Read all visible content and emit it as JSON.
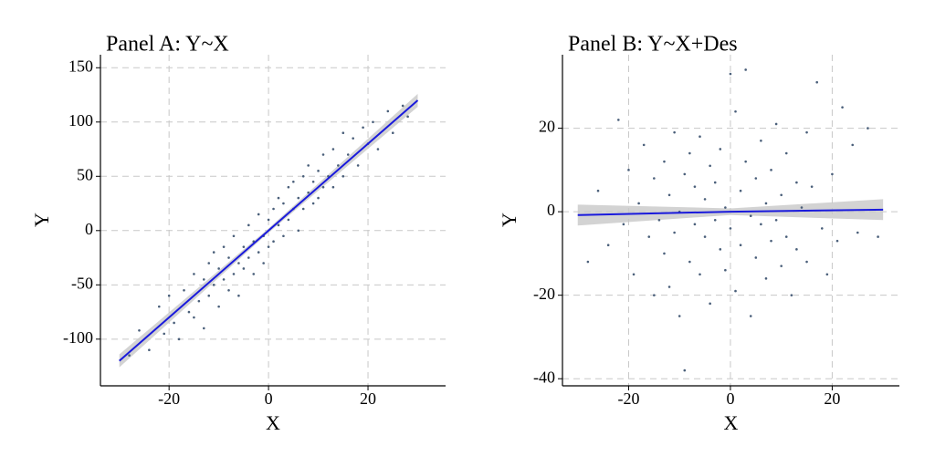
{
  "chart_data": [
    {
      "type": "scatter",
      "title": "Panel A: Y~X",
      "x_label": "X",
      "y_label": "Y",
      "xlim": [
        -33.8,
        35.6
      ],
      "ylim": [
        -143,
        162
      ],
      "xticks": [
        -20,
        0,
        20
      ],
      "yticks": [
        -100,
        -50,
        0,
        50,
        100,
        150
      ],
      "grid": true,
      "color": "#4a5f7a",
      "x": [
        -28,
        -26,
        -24,
        -22,
        -21,
        -20,
        -19,
        -18,
        -17,
        -16,
        -15,
        -15,
        -14,
        -13,
        -13,
        -12,
        -12,
        -11,
        -11,
        -10,
        -10,
        -9,
        -9,
        -8,
        -8,
        -7,
        -7,
        -6,
        -6,
        -5,
        -5,
        -4,
        -4,
        -3,
        -3,
        -2,
        -2,
        -1,
        -1,
        0,
        0,
        1,
        1,
        2,
        2,
        3,
        3,
        4,
        4,
        5,
        5,
        6,
        6,
        7,
        7,
        8,
        8,
        9,
        9,
        10,
        10,
        11,
        11,
        12,
        13,
        13,
        14,
        15,
        15,
        16,
        17,
        18,
        19,
        20,
        21,
        22,
        24,
        25,
        27,
        28
      ],
      "y": [
        -115,
        -92,
        -110,
        -70,
        -95,
        -60,
        -85,
        -100,
        -55,
        -75,
        -40,
        -80,
        -65,
        -45,
        -90,
        -30,
        -60,
        -50,
        -20,
        -70,
        -35,
        -45,
        -15,
        -55,
        -25,
        -40,
        -5,
        -30,
        -60,
        -15,
        -35,
        -25,
        5,
        -40,
        -10,
        -20,
        15,
        -5,
        -30,
        10,
        -15,
        20,
        -10,
        5,
        30,
        -5,
        25,
        40,
        10,
        20,
        45,
        30,
        0,
        50,
        20,
        35,
        60,
        25,
        45,
        55,
        30,
        70,
        40,
        50,
        75,
        40,
        60,
        90,
        50,
        70,
        85,
        60,
        95,
        80,
        100,
        75,
        110,
        90,
        115,
        105
      ],
      "fit": {
        "color": "#1a1adc",
        "band_color": "#c8c8c8",
        "x": [
          -30,
          0,
          30
        ],
        "y": [
          -120,
          0,
          120
        ],
        "lower": [
          -126,
          -2,
          114
        ],
        "upper": [
          -114,
          2,
          126
        ]
      }
    },
    {
      "type": "scatter",
      "title": "Panel B: Y~X+Des",
      "x_label": "X",
      "y_label": "Y",
      "xlim": [
        -33,
        33.2
      ],
      "ylim": [
        -41.7,
        37.6
      ],
      "xticks": [
        -20,
        0,
        20
      ],
      "yticks": [
        -40,
        -20,
        0,
        20
      ],
      "grid": true,
      "color": "#4a5f7a",
      "x": [
        -28,
        -26,
        -24,
        -22,
        -21,
        -20,
        -19,
        -18,
        -17,
        -16,
        -15,
        -15,
        -14,
        -13,
        -13,
        -12,
        -12,
        -11,
        -11,
        -10,
        -10,
        -9,
        -9,
        -8,
        -8,
        -7,
        -7,
        -6,
        -6,
        -5,
        -5,
        -4,
        -4,
        -3,
        -3,
        -2,
        -2,
        -1,
        -1,
        0,
        0,
        1,
        1,
        2,
        2,
        3,
        3,
        4,
        4,
        5,
        5,
        6,
        6,
        7,
        7,
        8,
        8,
        9,
        9,
        10,
        10,
        11,
        11,
        12,
        13,
        13,
        14,
        15,
        15,
        16,
        17,
        18,
        19,
        20,
        21,
        22,
        24,
        25,
        27,
        29
      ],
      "y": [
        -12,
        5,
        -8,
        22,
        -3,
        10,
        -15,
        2,
        16,
        -6,
        -20,
        8,
        -2,
        12,
        -10,
        4,
        -18,
        19,
        -5,
        0,
        -25,
        -38,
        9,
        -12,
        14,
        -3,
        6,
        -15,
        18,
        -6,
        3,
        -22,
        11,
        -2,
        7,
        -9,
        15,
        1,
        -14,
        33,
        -4,
        24,
        -19,
        5,
        -8,
        34,
        12,
        -1,
        -25,
        8,
        -11,
        17,
        -3,
        2,
        -16,
        10,
        -7,
        21,
        -2,
        4,
        -13,
        14,
        -6,
        -20,
        7,
        -9,
        1,
        19,
        -12,
        6,
        31,
        -4,
        -15,
        9,
        -7,
        25,
        16,
        -5,
        20,
        -6
      ],
      "fit": {
        "color": "#1a1adc",
        "band_color": "#c8c8c8",
        "x": [
          -30,
          0,
          30
        ],
        "y": [
          -0.8,
          0,
          0.5
        ],
        "lower": [
          -3.3,
          -0.8,
          -2
        ],
        "upper": [
          1.7,
          0.8,
          3
        ]
      }
    }
  ]
}
